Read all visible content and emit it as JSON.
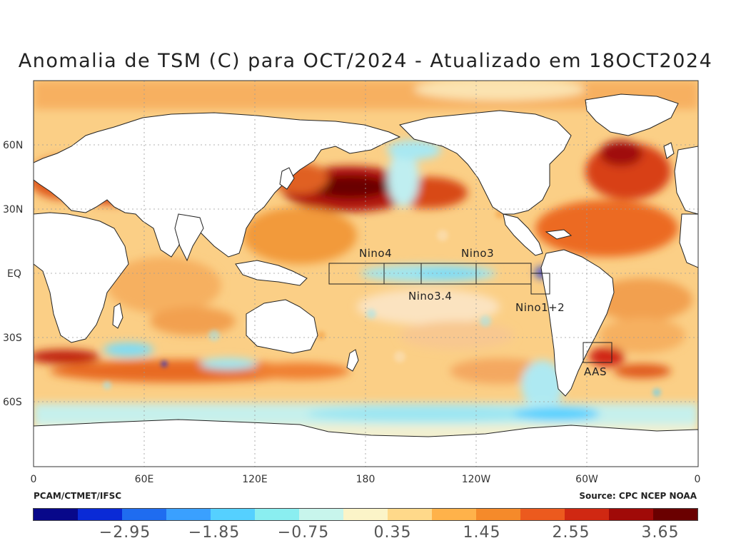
{
  "title": "Anomalia de TSM (C) para OCT/2024 - Atualizado em 18OCT2024",
  "credits": {
    "left": "PCAM/CTMET/IFSC",
    "right": "Source: CPC NCEP NOAA"
  },
  "lat_labels": [
    "60N",
    "30N",
    "EQ",
    "30S",
    "60S"
  ],
  "lon_labels": [
    "0",
    "60E",
    "120E",
    "180",
    "120W",
    "60W",
    "0"
  ],
  "regions": {
    "nino4": "Nino4",
    "nino3": "Nino3",
    "nino34": "Nino3.4",
    "nino12": "Nino1+2",
    "aas": "AAS"
  },
  "colorbar": {
    "colors": [
      "#08088a",
      "#0a2ad6",
      "#1f6cf0",
      "#3aa0ff",
      "#55d0ff",
      "#8aeef0",
      "#c8f5ec",
      "#fbf4c8",
      "#ffd98a",
      "#ffb24a",
      "#f58a2a",
      "#ec5a1e",
      "#d02812",
      "#a00a08",
      "#6a0000"
    ],
    "labels": [
      "−2.95",
      "−1.85",
      "−0.75",
      "0.35",
      "1.45",
      "2.55",
      "3.65"
    ]
  },
  "palette": {
    "ocean_base": "#fbcf86",
    "land": "#ffffff",
    "warm": "#f0802c",
    "hot": "#c02010",
    "extreme": "#7a0000",
    "cool": "#9ee6f2",
    "cold": "#3aa8ff",
    "neutral": "#fbeed0"
  }
}
